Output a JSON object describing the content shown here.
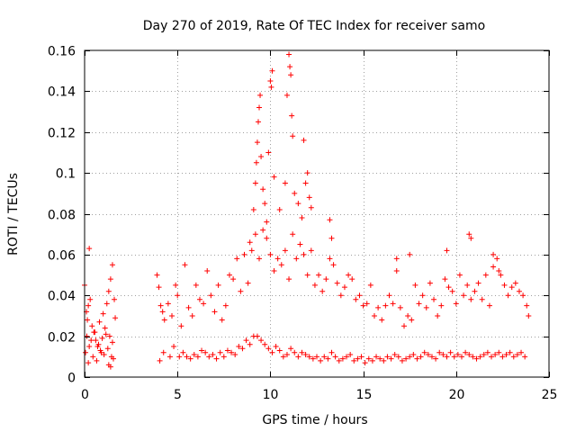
{
  "chart_data": {
    "type": "scatter",
    "title": "Day 270 of 2019, Rate Of TEC Index for receiver samo",
    "xlabel": "GPS time / hours",
    "ylabel": "ROTI / TECUs",
    "xlim": [
      0,
      25
    ],
    "ylim": [
      0,
      0.16
    ],
    "xticks": [
      0,
      5,
      10,
      15,
      20,
      25
    ],
    "yticks": [
      0,
      0.02,
      0.04,
      0.06,
      0.08,
      0.1,
      0.12,
      0.14,
      0.16
    ],
    "xtick_labels": [
      "0",
      "5",
      "10",
      "15",
      "20",
      "25"
    ],
    "ytick_labels": [
      "0",
      "0.02",
      "0.04",
      "0.06",
      "0.08",
      "0.1",
      "0.12",
      "0.14",
      "0.16"
    ],
    "grid": true,
    "marker": "+",
    "colors": {
      "series": "#ff0000",
      "grid": "#a0a0a0",
      "axis": "#000000"
    },
    "series": [
      {
        "name": "ROTI",
        "x": [
          0.0,
          0.1,
          0.15,
          0.2,
          0.3,
          0.4,
          0.5,
          0.6,
          0.7,
          0.8,
          0.9,
          1.0,
          1.1,
          1.2,
          1.3,
          1.4,
          1.5,
          1.6,
          1.65,
          0.05,
          0.25,
          0.45,
          0.65,
          0.85,
          1.05,
          1.25,
          1.45,
          1.55,
          0.12,
          0.35,
          0.55,
          0.75,
          0.95,
          1.15,
          1.35,
          1.5,
          0.2,
          1.3,
          1.4,
          3.9,
          4.0,
          4.1,
          4.2,
          4.3,
          4.5,
          4.7,
          4.9,
          5.0,
          5.2,
          5.4,
          5.6,
          5.8,
          6.0,
          6.2,
          6.4,
          6.6,
          6.8,
          7.0,
          7.2,
          7.4,
          7.6,
          7.8,
          8.0,
          8.2,
          8.4,
          8.6,
          8.8,
          9.0,
          9.2,
          9.4,
          9.6,
          9.8,
          10.0,
          10.2,
          10.4,
          10.6,
          10.8,
          11.0,
          11.2,
          11.4,
          11.6,
          11.8,
          12.0,
          12.2,
          12.4,
          12.6,
          12.8,
          13.0,
          13.2,
          13.4,
          13.6,
          13.8,
          14.0,
          14.2,
          14.4,
          14.6,
          14.8,
          15.0,
          15.2,
          15.4,
          15.6,
          15.8,
          16.0,
          16.2,
          16.4,
          16.6,
          16.8,
          17.0,
          17.2,
          17.4,
          17.6,
          17.8,
          18.0,
          18.2,
          18.4,
          18.6,
          18.8,
          19.0,
          19.2,
          19.4,
          19.6,
          19.8,
          20.0,
          20.2,
          20.4,
          20.6,
          20.8,
          21.0,
          21.2,
          21.4,
          21.6,
          21.8,
          22.0,
          22.2,
          22.4,
          22.6,
          22.8,
          23.0,
          23.2,
          23.4,
          23.6,
          23.8,
          23.9,
          4.05,
          4.25,
          4.6,
          4.8,
          5.1,
          5.3,
          5.5,
          5.7,
          5.9,
          6.1,
          6.3,
          6.5,
          6.7,
          6.9,
          7.1,
          7.3,
          7.5,
          7.7,
          7.9,
          8.1,
          8.3,
          8.5,
          8.7,
          8.9,
          9.1,
          9.3,
          9.5,
          9.7,
          9.9,
          10.1,
          10.3,
          10.5,
          10.7,
          10.9,
          11.1,
          11.3,
          11.5,
          11.7,
          11.9,
          12.1,
          12.3,
          12.5,
          12.7,
          12.9,
          13.1,
          13.3,
          13.5,
          13.7,
          13.9,
          14.1,
          14.3,
          14.5,
          14.7,
          14.9,
          15.1,
          15.3,
          15.5,
          15.7,
          15.9,
          16.1,
          16.3,
          16.5,
          16.7,
          16.9,
          17.1,
          17.3,
          17.5,
          17.7,
          17.9,
          18.1,
          18.3,
          18.5,
          18.7,
          18.9,
          19.1,
          19.3,
          19.5,
          19.7,
          19.9,
          20.1,
          20.3,
          20.5,
          20.7,
          20.9,
          21.1,
          21.3,
          21.5,
          21.7,
          21.9,
          22.1,
          22.3,
          22.5,
          22.7,
          22.9,
          23.1,
          23.3,
          23.5,
          23.7,
          9.1,
          9.2,
          9.25,
          9.3,
          9.35,
          9.4,
          9.45,
          9.5,
          9.6,
          9.7,
          9.8,
          9.9,
          10.0,
          10.05,
          10.1,
          10.2,
          10.5,
          10.8,
          10.9,
          11.0,
          11.05,
          11.1,
          11.15,
          11.2,
          11.3,
          11.5,
          11.7,
          11.8,
          11.9,
          12.0,
          12.1,
          12.2,
          13.2,
          13.3,
          16.8,
          17.5,
          19.5,
          20.7,
          20.8,
          22.0,
          22.3,
          0.25,
          8.9
        ],
        "y": [
          0.045,
          0.032,
          0.028,
          0.035,
          0.038,
          0.025,
          0.022,
          0.018,
          0.015,
          0.027,
          0.012,
          0.031,
          0.024,
          0.036,
          0.042,
          0.048,
          0.055,
          0.038,
          0.029,
          0.012,
          0.015,
          0.01,
          0.008,
          0.013,
          0.011,
          0.014,
          0.01,
          0.009,
          0.02,
          0.018,
          0.022,
          0.016,
          0.019,
          0.021,
          0.02,
          0.017,
          0.007,
          0.006,
          0.005,
          0.05,
          0.044,
          0.035,
          0.032,
          0.028,
          0.036,
          0.03,
          0.045,
          0.04,
          0.025,
          0.055,
          0.034,
          0.03,
          0.045,
          0.038,
          0.036,
          0.052,
          0.04,
          0.032,
          0.045,
          0.028,
          0.035,
          0.05,
          0.048,
          0.058,
          0.042,
          0.06,
          0.046,
          0.062,
          0.07,
          0.058,
          0.072,
          0.068,
          0.06,
          0.052,
          0.058,
          0.055,
          0.062,
          0.048,
          0.07,
          0.058,
          0.065,
          0.06,
          0.05,
          0.062,
          0.045,
          0.05,
          0.042,
          0.048,
          0.058,
          0.055,
          0.046,
          0.04,
          0.044,
          0.05,
          0.048,
          0.038,
          0.04,
          0.035,
          0.036,
          0.045,
          0.03,
          0.034,
          0.028,
          0.035,
          0.04,
          0.036,
          0.052,
          0.034,
          0.025,
          0.03,
          0.028,
          0.045,
          0.036,
          0.04,
          0.034,
          0.046,
          0.038,
          0.03,
          0.035,
          0.048,
          0.044,
          0.042,
          0.036,
          0.05,
          0.04,
          0.045,
          0.038,
          0.042,
          0.046,
          0.038,
          0.05,
          0.035,
          0.054,
          0.058,
          0.05,
          0.045,
          0.04,
          0.044,
          0.046,
          0.042,
          0.04,
          0.035,
          0.03,
          0.008,
          0.012,
          0.01,
          0.015,
          0.01,
          0.012,
          0.01,
          0.009,
          0.011,
          0.01,
          0.013,
          0.012,
          0.01,
          0.011,
          0.009,
          0.012,
          0.01,
          0.013,
          0.012,
          0.011,
          0.015,
          0.014,
          0.018,
          0.016,
          0.02,
          0.02,
          0.018,
          0.016,
          0.014,
          0.012,
          0.015,
          0.013,
          0.01,
          0.011,
          0.014,
          0.012,
          0.01,
          0.012,
          0.011,
          0.01,
          0.009,
          0.01,
          0.008,
          0.01,
          0.009,
          0.012,
          0.01,
          0.008,
          0.009,
          0.01,
          0.011,
          0.008,
          0.009,
          0.01,
          0.007,
          0.009,
          0.008,
          0.01,
          0.009,
          0.008,
          0.01,
          0.009,
          0.011,
          0.01,
          0.008,
          0.009,
          0.01,
          0.011,
          0.009,
          0.01,
          0.012,
          0.011,
          0.01,
          0.009,
          0.012,
          0.011,
          0.01,
          0.012,
          0.01,
          0.011,
          0.01,
          0.012,
          0.011,
          0.01,
          0.009,
          0.01,
          0.011,
          0.012,
          0.01,
          0.011,
          0.012,
          0.01,
          0.011,
          0.012,
          0.01,
          0.011,
          0.012,
          0.01,
          0.082,
          0.095,
          0.105,
          0.115,
          0.125,
          0.132,
          0.138,
          0.108,
          0.092,
          0.085,
          0.076,
          0.11,
          0.145,
          0.142,
          0.15,
          0.098,
          0.082,
          0.095,
          0.138,
          0.158,
          0.152,
          0.148,
          0.128,
          0.118,
          0.09,
          0.085,
          0.078,
          0.116,
          0.095,
          0.1,
          0.088,
          0.083,
          0.077,
          0.068,
          0.058,
          0.06,
          0.062,
          0.07,
          0.068,
          0.06,
          0.052,
          0.063,
          0.066
        ]
      }
    ]
  }
}
